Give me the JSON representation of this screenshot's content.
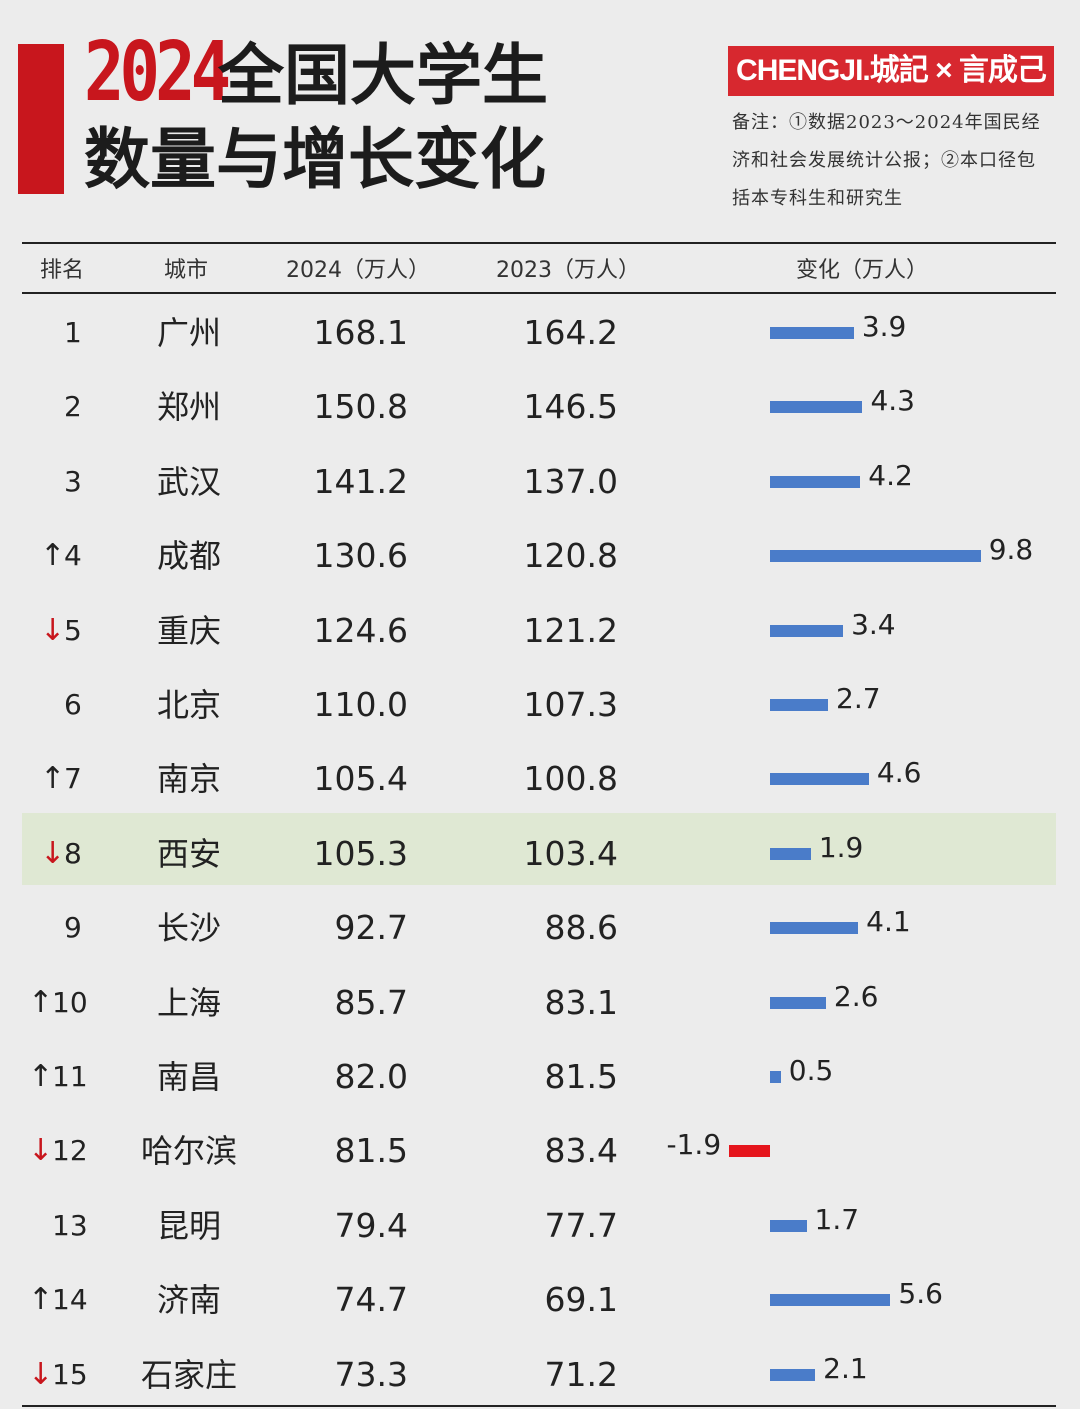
{
  "title": {
    "year": "2024",
    "line1": "全国大学生",
    "line2": "数量与增长变化"
  },
  "brand": "CHENGJI.城記 × 言成己",
  "note": "备注：①数据2023～2024年国民经济和社会发展统计公报；②本口径包括本专科生和研究生",
  "headers": {
    "rank": "排名",
    "city": "城市",
    "y2024": "2024（万人）",
    "y2023": "2023（万人）",
    "change": "变化（万人）"
  },
  "colors": {
    "accent": "#c8161d",
    "bar_positive": "#4a7cc9",
    "bar_negative": "#e5151c",
    "highlight_row": "#dfe8d3"
  },
  "highlight_city": "西安",
  "chart_data": {
    "type": "table",
    "columns": [
      "排名",
      "城市",
      "2024（万人）",
      "2023（万人）",
      "变化（万人）"
    ],
    "rows": [
      {
        "rank": "1",
        "arrow": "",
        "city": "广州",
        "y2024": "168.1",
        "y2023": "164.2",
        "change": 3.9,
        "change_label": "3.9"
      },
      {
        "rank": "2",
        "arrow": "",
        "city": "郑州",
        "y2024": "150.8",
        "y2023": "146.5",
        "change": 4.3,
        "change_label": "4.3"
      },
      {
        "rank": "3",
        "arrow": "",
        "city": "武汉",
        "y2024": "141.2",
        "y2023": "137.0",
        "change": 4.2,
        "change_label": "4.2"
      },
      {
        "rank": "4",
        "arrow": "up",
        "city": "成都",
        "y2024": "130.6",
        "y2023": "120.8",
        "change": 9.8,
        "change_label": "9.8"
      },
      {
        "rank": "5",
        "arrow": "down",
        "city": "重庆",
        "y2024": "124.6",
        "y2023": "121.2",
        "change": 3.4,
        "change_label": "3.4"
      },
      {
        "rank": "6",
        "arrow": "",
        "city": "北京",
        "y2024": "110.0",
        "y2023": "107.3",
        "change": 2.7,
        "change_label": "2.7"
      },
      {
        "rank": "7",
        "arrow": "up",
        "city": "南京",
        "y2024": "105.4",
        "y2023": "100.8",
        "change": 4.6,
        "change_label": "4.6"
      },
      {
        "rank": "8",
        "arrow": "down",
        "city": "西安",
        "y2024": "105.3",
        "y2023": "103.4",
        "change": 1.9,
        "change_label": "1.9"
      },
      {
        "rank": "9",
        "arrow": "",
        "city": "长沙",
        "y2024": "92.7",
        "y2023": "88.6",
        "change": 4.1,
        "change_label": "4.1"
      },
      {
        "rank": "10",
        "arrow": "up",
        "city": "上海",
        "y2024": "85.7",
        "y2023": "83.1",
        "change": 2.6,
        "change_label": "2.6"
      },
      {
        "rank": "11",
        "arrow": "up",
        "city": "南昌",
        "y2024": "82.0",
        "y2023": "81.5",
        "change": 0.5,
        "change_label": "0.5"
      },
      {
        "rank": "12",
        "arrow": "down",
        "city": "哈尔滨",
        "y2024": "81.5",
        "y2023": "83.4",
        "change": -1.9,
        "change_label": "-1.9"
      },
      {
        "rank": "13",
        "arrow": "",
        "city": "昆明",
        "y2024": "79.4",
        "y2023": "77.7",
        "change": 1.7,
        "change_label": "1.7"
      },
      {
        "rank": "14",
        "arrow": "up",
        "city": "济南",
        "y2024": "74.7",
        "y2023": "69.1",
        "change": 5.6,
        "change_label": "5.6"
      },
      {
        "rank": "15",
        "arrow": "down",
        "city": "石家庄",
        "y2024": "73.3",
        "y2023": "71.2",
        "change": 2.1,
        "change_label": "2.1"
      }
    ]
  }
}
